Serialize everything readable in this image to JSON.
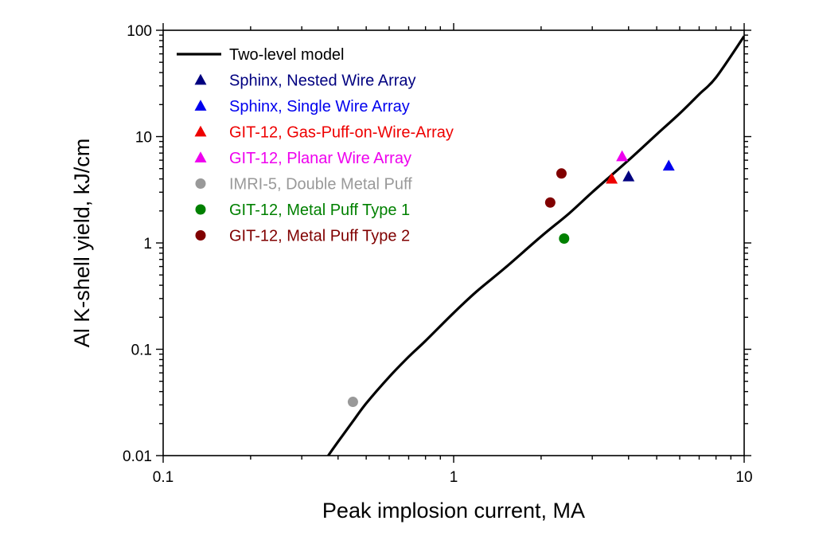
{
  "chart_data": {
    "type": "scatter",
    "title": "",
    "xlabel": "Peak implosion current, MA",
    "ylabel": "Al K-shell yield, kJ/cm",
    "xscale": "log",
    "yscale": "log",
    "xlim": [
      0.1,
      10
    ],
    "ylim": [
      0.01,
      100
    ],
    "x_ticks": [
      {
        "value": 0.1,
        "label": "0.1"
      },
      {
        "value": 1,
        "label": "1"
      },
      {
        "value": 10,
        "label": "10"
      }
    ],
    "y_ticks": [
      {
        "value": 0.01,
        "label": "0.01"
      },
      {
        "value": 0.1,
        "label": "0.1"
      },
      {
        "value": 1,
        "label": "1"
      },
      {
        "value": 10,
        "label": "10"
      },
      {
        "value": 100,
        "label": "100"
      }
    ],
    "legend_position": "top-left",
    "model_curve": {
      "name": "Two-level model",
      "color": "#000000",
      "x": [
        0.37,
        0.4,
        0.45,
        0.5,
        0.6,
        0.7,
        0.8,
        1.0,
        1.2,
        1.5,
        2.0,
        2.5,
        3.0,
        4.0,
        5.0,
        6.0,
        7.0,
        8.0,
        10.0
      ],
      "y": [
        0.01,
        0.0135,
        0.021,
        0.031,
        0.055,
        0.085,
        0.12,
        0.22,
        0.35,
        0.58,
        1.15,
        1.9,
        3.0,
        6.0,
        10.5,
        16.5,
        25.0,
        36.0,
        88.0
      ]
    },
    "series": [
      {
        "name": "Sphinx, Nested Wire Array",
        "marker": "triangle",
        "color": "#000080",
        "points": [
          {
            "x": 4.0,
            "y": 4.2
          }
        ]
      },
      {
        "name": "Sphinx, Single Wire Array",
        "marker": "triangle",
        "color": "#0000ee",
        "points": [
          {
            "x": 5.5,
            "y": 5.3
          }
        ]
      },
      {
        "name": "GIT-12, Gas-Puff-on-Wire-Array",
        "marker": "triangle",
        "color": "#ee0000",
        "points": [
          {
            "x": 3.5,
            "y": 4.0
          }
        ]
      },
      {
        "name": "GIT-12, Planar Wire Array",
        "marker": "triangle",
        "color": "#ee00ee",
        "points": [
          {
            "x": 3.8,
            "y": 6.5
          }
        ]
      },
      {
        "name": "IMRI-5, Double Metal Puff",
        "marker": "circle",
        "color": "#999999",
        "points": [
          {
            "x": 0.45,
            "y": 0.032
          }
        ]
      },
      {
        "name": "GIT-12, Metal Puff Type 1",
        "marker": "circle",
        "color": "#008000",
        "points": [
          {
            "x": 2.4,
            "y": 1.1
          }
        ]
      },
      {
        "name": "GIT-12, Metal Puff Type 2",
        "marker": "circle",
        "color": "#800000",
        "points": [
          {
            "x": 2.15,
            "y": 2.4
          },
          {
            "x": 2.35,
            "y": 4.5
          }
        ]
      }
    ]
  }
}
